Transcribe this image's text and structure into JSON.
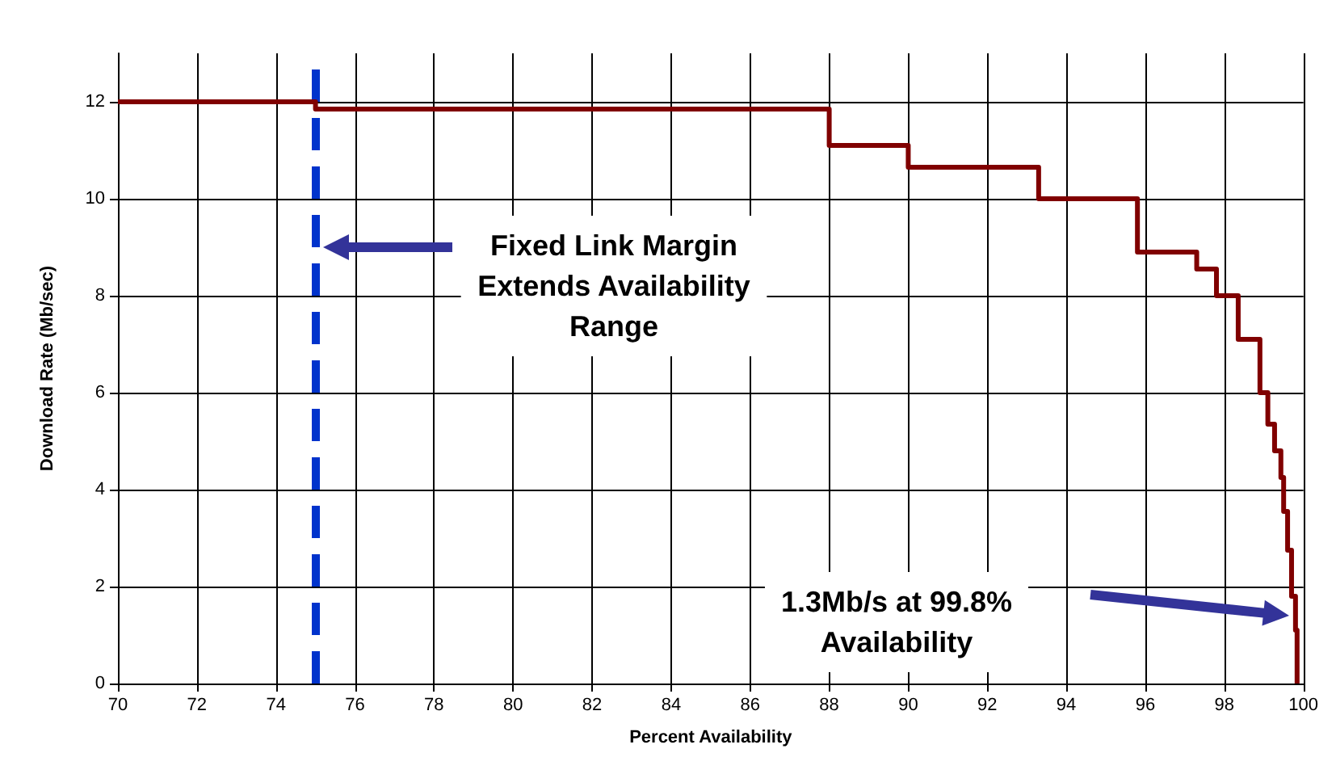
{
  "chart_data": {
    "type": "step",
    "xlabel": "Percent Availability",
    "ylabel": "Download Rate (Mb/sec)",
    "series": [
      {
        "color": "#800000",
        "x": [
          70,
          75,
          88,
          90,
          93.3,
          95.8,
          97.3,
          97.8,
          98.35,
          98.9,
          99.1,
          99.27,
          99.43,
          99.5,
          99.6,
          99.7,
          99.8,
          99.84
        ],
        "values": [
          12,
          11.85,
          11.1,
          10.65,
          10,
          8.9,
          8.55,
          8,
          7.1,
          6,
          5.35,
          4.8,
          4.25,
          3.55,
          2.75,
          1.8,
          1.1,
          0
        ]
      }
    ],
    "xlim": [
      70,
      100
    ],
    "xticks": [
      70,
      72,
      74,
      76,
      78,
      80,
      82,
      84,
      86,
      88,
      90,
      92,
      94,
      96,
      98,
      100
    ],
    "ylim": [
      0,
      13
    ],
    "yticks": [
      0,
      2,
      4,
      6,
      8,
      10,
      12
    ],
    "grid": true,
    "ref_lines": [
      {
        "axis": "x",
        "value": 75,
        "color": "#0033cc",
        "line_style": "dashed"
      }
    ],
    "annotations": [
      "Fixed Link Margin\nExtends Availability\nRange",
      "1.3Mb/s at 99.8%\nAvailability"
    ]
  }
}
